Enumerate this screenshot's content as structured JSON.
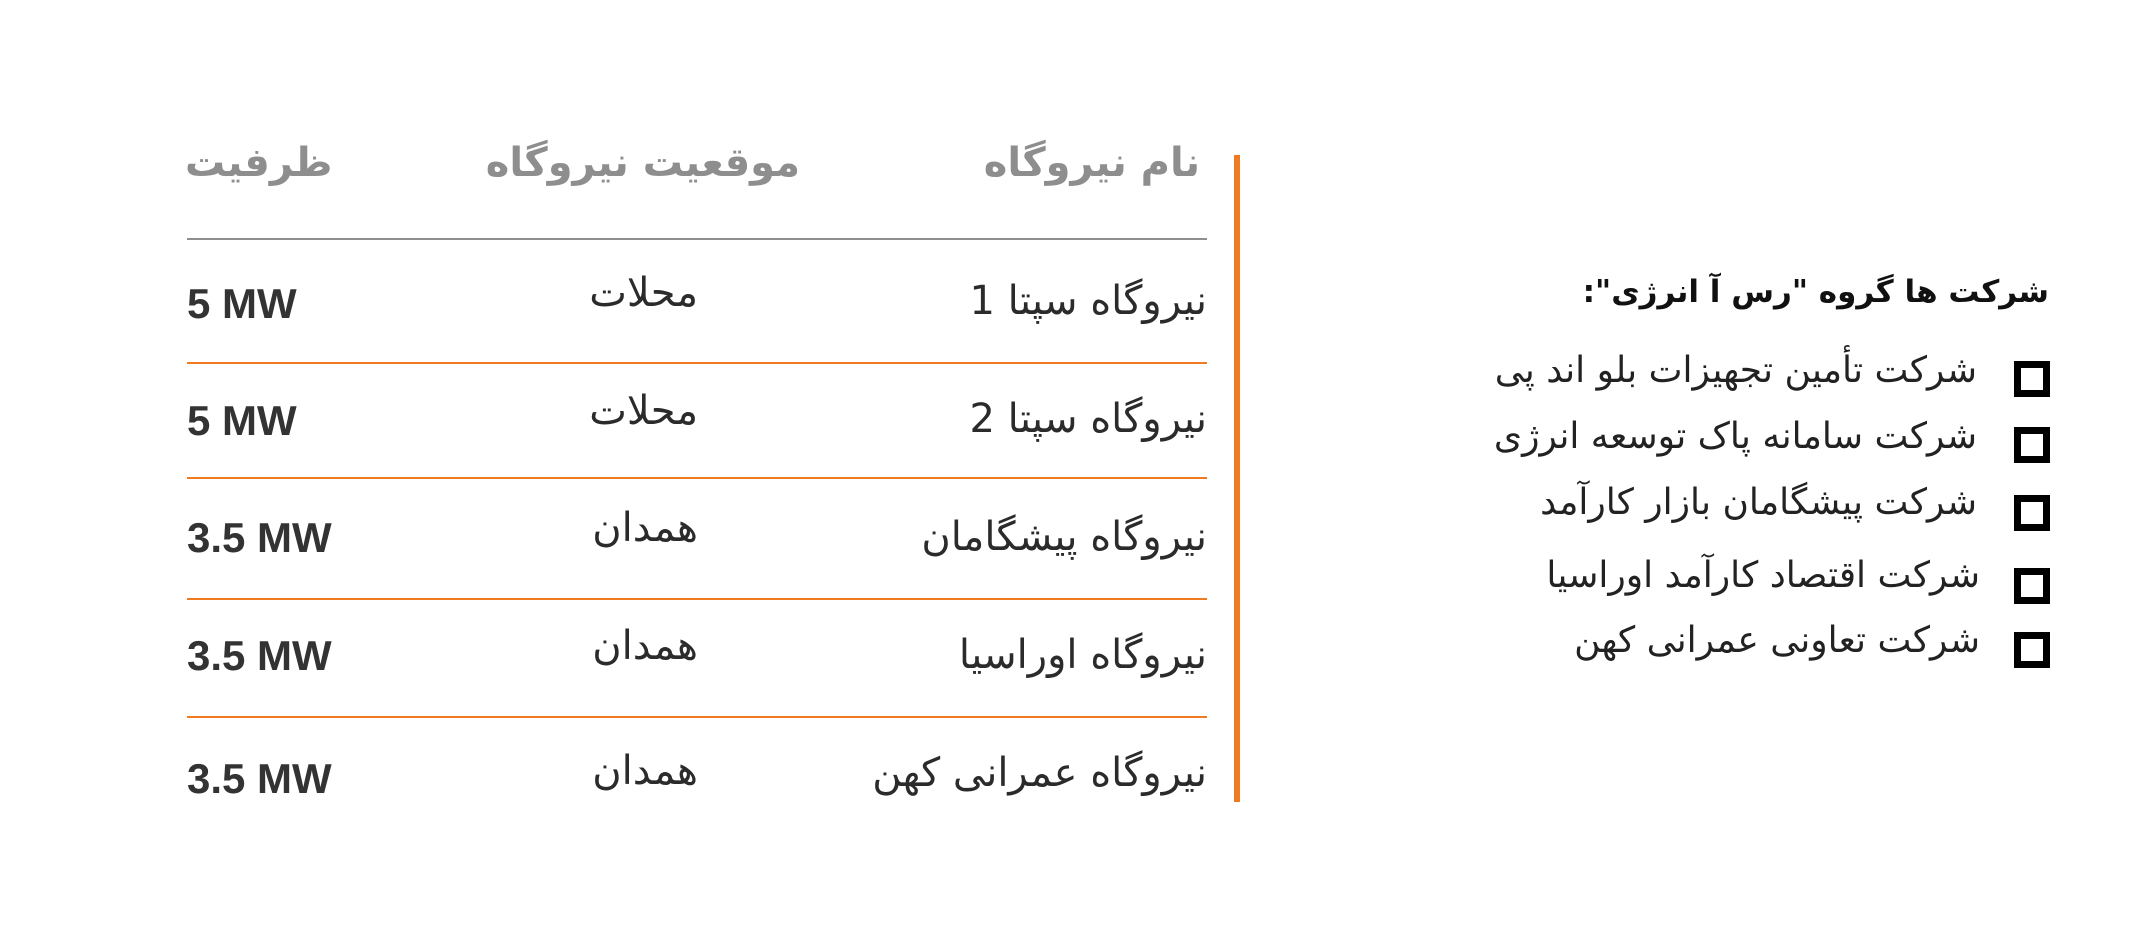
{
  "table": {
    "headers": {
      "name": "نام نیروگاه",
      "location": "موقعیت نیروگاه",
      "capacity": "ظرفیت"
    },
    "rows": [
      {
        "name": "نیروگاه سپتا 1",
        "location": "محلات",
        "capacity": "5 MW"
      },
      {
        "name": "نیروگاه سپتا 2",
        "location": "محلات",
        "capacity": "5 MW"
      },
      {
        "name": "نیروگاه پیشگامان",
        "location": "همدان",
        "capacity": "3.5 MW"
      },
      {
        "name": "نیروگاه اوراسیا",
        "location": "همدان",
        "capacity": "3.5 MW"
      },
      {
        "name": "نیروگاه عمرانی کهن",
        "location": "همدان",
        "capacity": "3.5 MW"
      }
    ]
  },
  "companies": {
    "title": "شرکت ها گروه \"رس آ انرژی\":",
    "items": [
      "شرکت تأمین تجهیزات بلو اند پی",
      "شرکت سامانه پاک توسعه انرژی",
      "شرکت پیشگامان بازار کارآمد",
      "شرکت اقتصاد کارآمد اوراسیا",
      "شرکت تعاونی عمرانی کهن"
    ]
  },
  "colors": {
    "accent": "#f07a22",
    "header_text": "#8e8e8e",
    "body_text": "#2b2b2b"
  }
}
